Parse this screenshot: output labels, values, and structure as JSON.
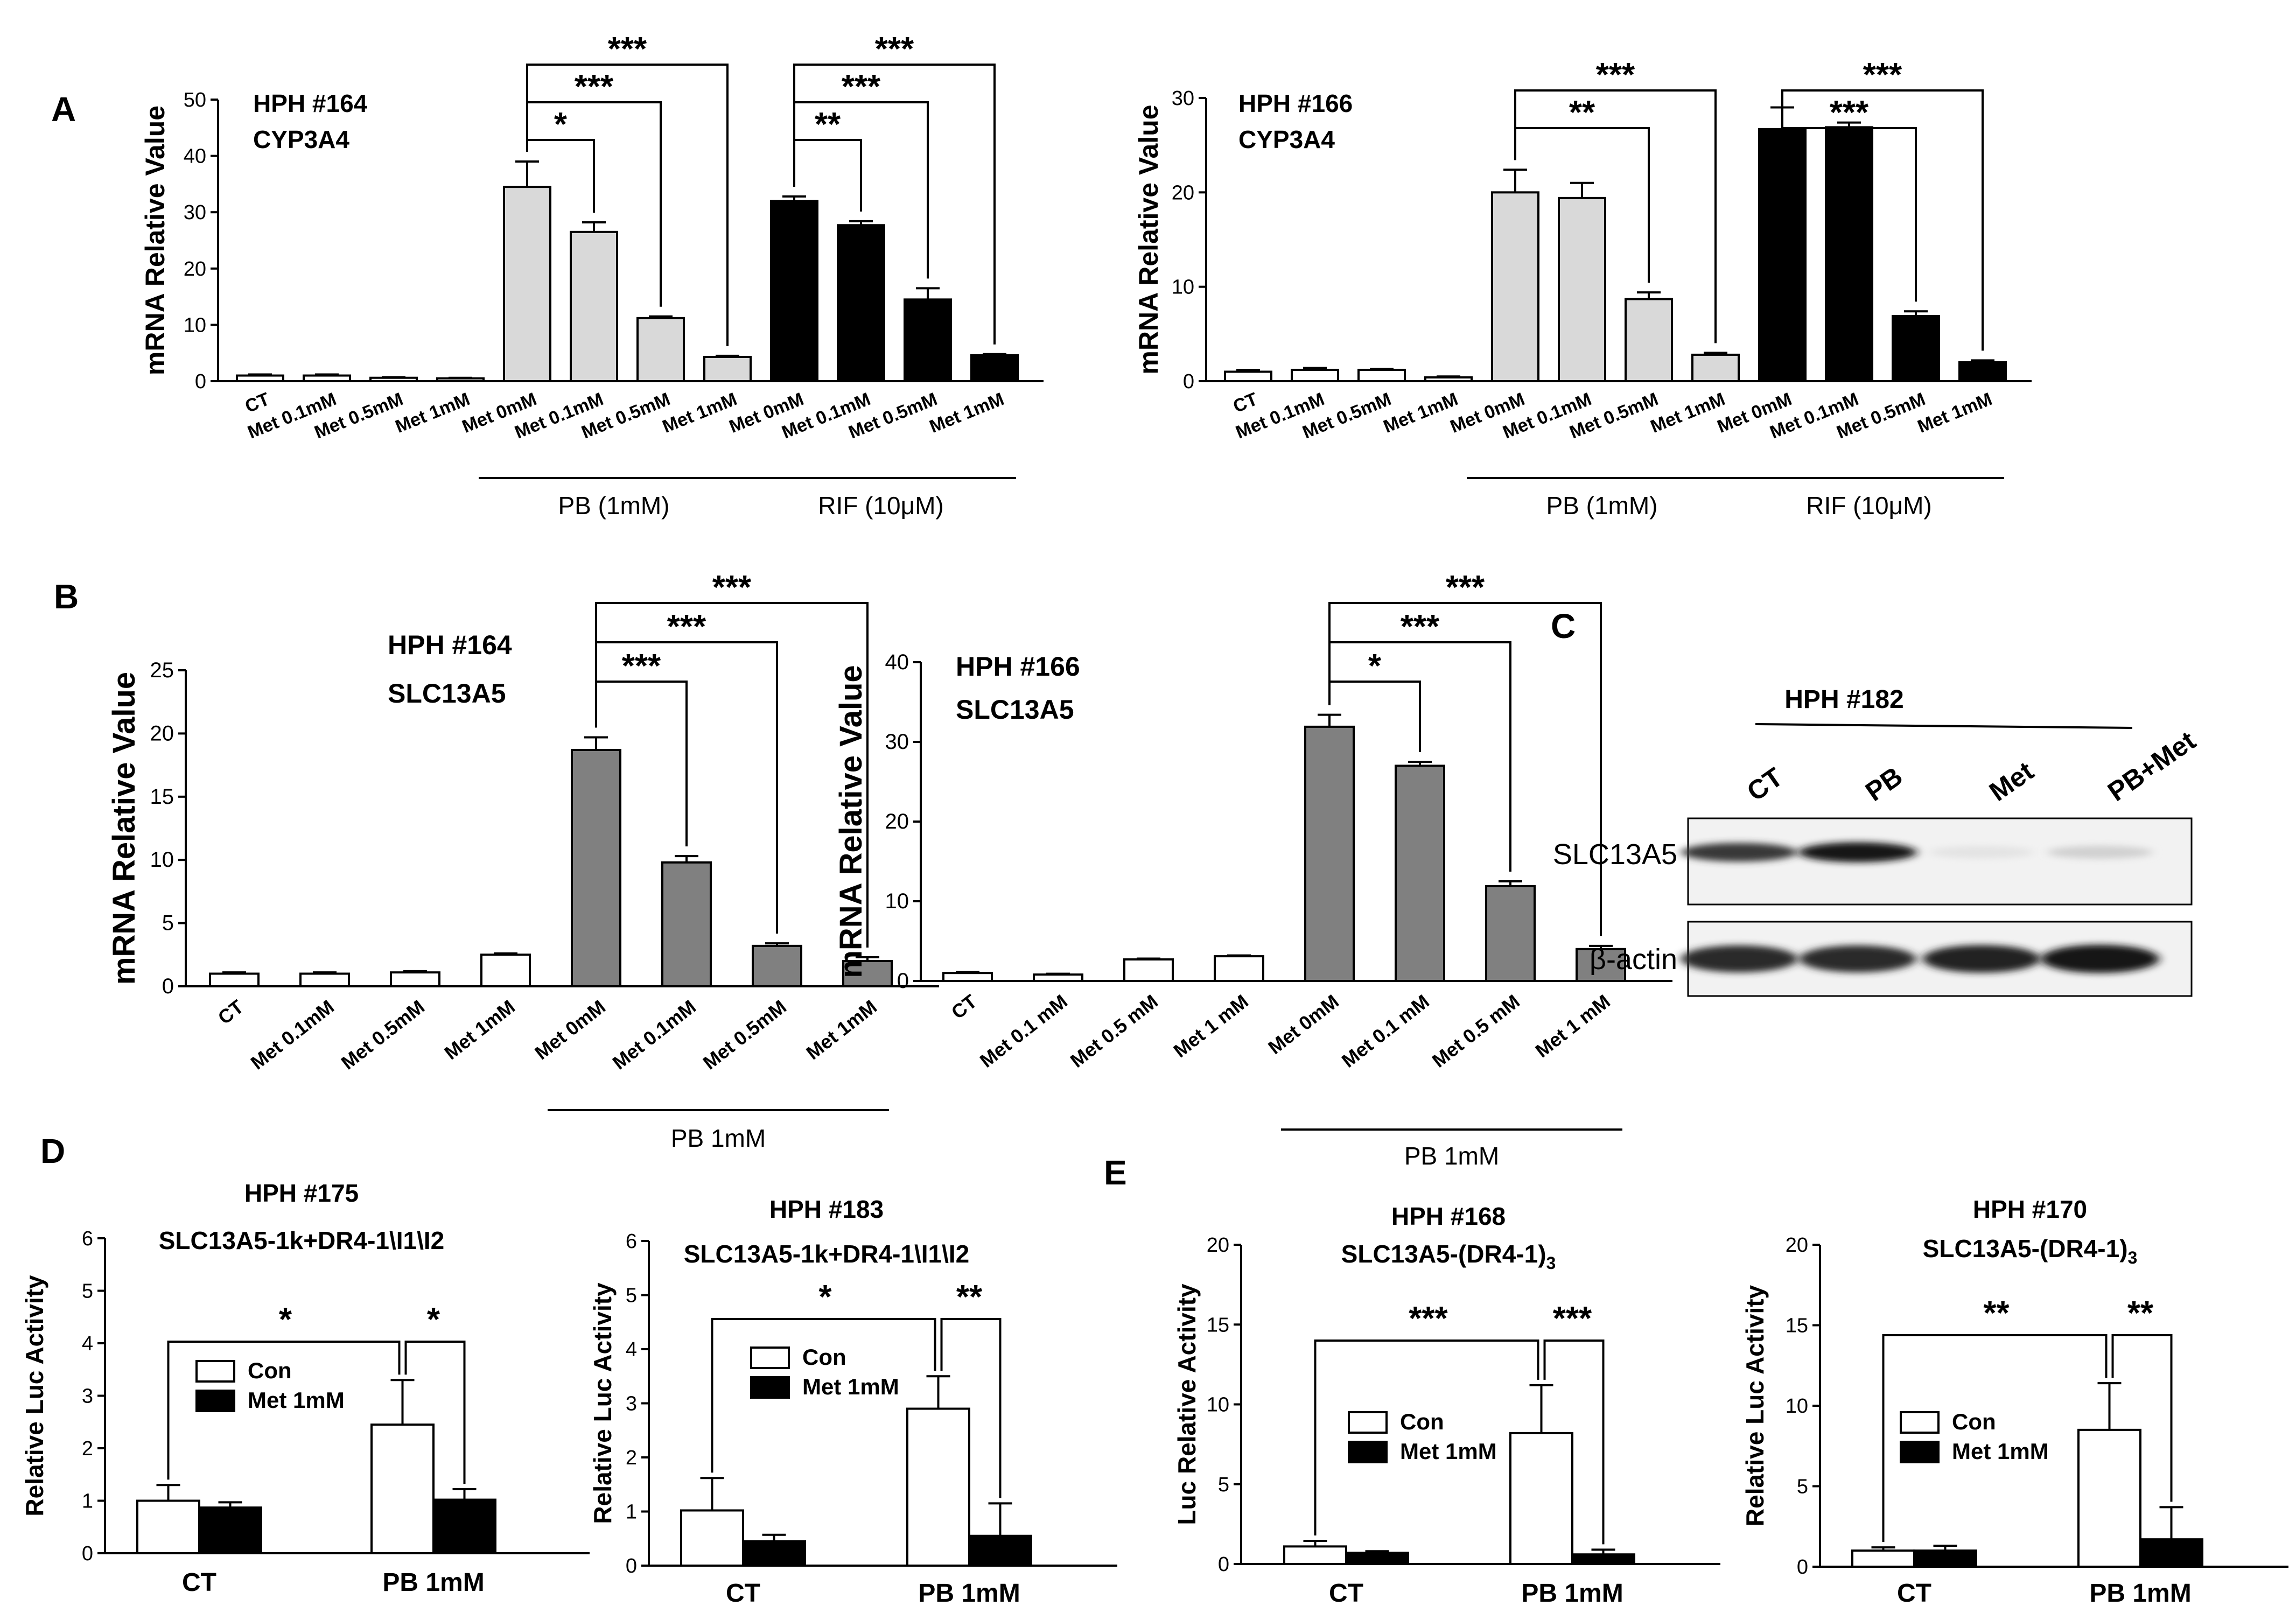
{
  "panels": {
    "A": "A",
    "B": "B",
    "C": "C",
    "D": "D",
    "E": "E"
  },
  "colors": {
    "white": "#ffffff",
    "light": "#d9d9d9",
    "gray": "#808080",
    "black": "#000000"
  },
  "chart_data": [
    {
      "id": "A1",
      "type": "bar",
      "title_lines": [
        "HPH #164",
        "CYP3A4"
      ],
      "ylabel": "mRNA Relative Value",
      "ylim": [
        0,
        50
      ],
      "yticks": [
        0,
        10,
        20,
        30,
        40,
        50
      ],
      "categories": [
        "CT",
        "Met 0.1mM",
        "Met 0.5mM",
        "Met 1mM",
        "Met 0mM",
        "Met 0.1mM",
        "Met 0.5mM",
        "Met 1mM",
        "Met 0mM",
        "Met 0.1mM",
        "Met 0.5mM",
        "Met 1mM"
      ],
      "values": [
        1.0,
        1.0,
        0.6,
        0.5,
        34.5,
        26.5,
        11.2,
        4.3,
        32.0,
        27.7,
        14.5,
        4.6
      ],
      "errors": [
        0.2,
        0.2,
        0.1,
        0.1,
        4.5,
        1.7,
        0.3,
        0.2,
        0.8,
        0.7,
        2.0,
        0.2
      ],
      "colors": [
        "white",
        "white",
        "white",
        "white",
        "light",
        "light",
        "light",
        "light",
        "black",
        "black",
        "black",
        "black"
      ],
      "groups": [
        {
          "label": "PB (1mM)",
          "from": 4,
          "to": 7
        },
        {
          "label": "RIF (10μM)",
          "from": 8,
          "to": 11
        }
      ],
      "sig": [
        {
          "from": 4,
          "to": 5,
          "label": "*"
        },
        {
          "from": 4,
          "to": 6,
          "label": "***"
        },
        {
          "from": 4,
          "to": 7,
          "label": "***"
        },
        {
          "from": 8,
          "to": 9,
          "label": "**"
        },
        {
          "from": 8,
          "to": 10,
          "label": "***"
        },
        {
          "from": 8,
          "to": 11,
          "label": "***"
        }
      ]
    },
    {
      "id": "A2",
      "type": "bar",
      "title_lines": [
        "HPH #166",
        "CYP3A4"
      ],
      "ylabel": "mRNA Relative Value",
      "ylim": [
        0,
        30
      ],
      "yticks": [
        0,
        10,
        20,
        30
      ],
      "categories": [
        "CT",
        "Met 0.1mM",
        "Met 0.5mM",
        "Met 1mM",
        "Met 0mM",
        "Met 0.1mM",
        "Met 0.5mM",
        "Met 1mM",
        "Met 0mM",
        "Met 0.1mM",
        "Met 0.5mM",
        "Met 1mM"
      ],
      "values": [
        1.0,
        1.2,
        1.2,
        0.4,
        20.0,
        19.4,
        8.7,
        2.8,
        26.7,
        26.9,
        6.9,
        2.0
      ],
      "errors": [
        0.2,
        0.2,
        0.1,
        0.1,
        2.4,
        1.6,
        0.7,
        0.2,
        2.3,
        0.5,
        0.5,
        0.2
      ],
      "colors": [
        "white",
        "white",
        "white",
        "white",
        "light",
        "light",
        "light",
        "light",
        "black",
        "black",
        "black",
        "black"
      ],
      "groups": [
        {
          "label": "PB (1mM)",
          "from": 4,
          "to": 7
        },
        {
          "label": "RIF (10μM)",
          "from": 8,
          "to": 11
        }
      ],
      "sig": [
        {
          "from": 4,
          "to": 6,
          "label": "**"
        },
        {
          "from": 4,
          "to": 7,
          "label": "***"
        },
        {
          "from": 8,
          "to": 10,
          "label": "***"
        },
        {
          "from": 8,
          "to": 11,
          "label": "***"
        }
      ]
    },
    {
      "id": "B1",
      "type": "bar",
      "title_lines": [
        "HPH #164",
        "SLC13A5"
      ],
      "ylabel": "mRNA Relative Value",
      "ylim": [
        0,
        25
      ],
      "yticks": [
        0,
        5,
        10,
        15,
        20,
        25
      ],
      "categories": [
        "CT",
        "Met 0.1mM",
        "Met 0.5mM",
        "Met 1mM",
        "Met 0mM",
        "Met 0.1mM",
        "Met 0.5mM",
        "Met 1mM"
      ],
      "values": [
        1.0,
        1.0,
        1.1,
        2.5,
        18.7,
        9.8,
        3.2,
        2.0
      ],
      "errors": [
        0.1,
        0.1,
        0.1,
        0.1,
        1.0,
        0.5,
        0.2,
        0.3
      ],
      "colors": [
        "white",
        "white",
        "white",
        "white",
        "gray",
        "gray",
        "gray",
        "gray"
      ],
      "groups": [
        {
          "label": "PB 1mM",
          "from": 4,
          "to": 7
        }
      ],
      "sig": [
        {
          "from": 4,
          "to": 5,
          "label": "***"
        },
        {
          "from": 4,
          "to": 6,
          "label": "***"
        },
        {
          "from": 4,
          "to": 7,
          "label": "***"
        }
      ]
    },
    {
      "id": "B2",
      "type": "bar",
      "title_lines": [
        "HPH #166",
        "SLC13A5"
      ],
      "ylabel": "mRNA Relative Value",
      "ylim": [
        0,
        40
      ],
      "yticks": [
        0,
        10,
        20,
        30,
        40
      ],
      "categories": [
        "CT",
        "Met 0.1 mM",
        "Met 0.5 mM",
        "Met 1 mM",
        "Met 0mM",
        "Met 0.1 mM",
        "Met 0.5 mM",
        "Met 1 mM"
      ],
      "values": [
        1.0,
        0.8,
        2.7,
        3.1,
        31.9,
        27.0,
        11.9,
        4.0
      ],
      "errors": [
        0.1,
        0.1,
        0.1,
        0.1,
        1.5,
        0.5,
        0.6,
        0.4
      ],
      "colors": [
        "white",
        "white",
        "white",
        "white",
        "gray",
        "gray",
        "gray",
        "gray"
      ],
      "groups": [
        {
          "label": "PB 1mM",
          "from": 4,
          "to": 7
        }
      ],
      "sig": [
        {
          "from": 4,
          "to": 5,
          "label": "*"
        },
        {
          "from": 4,
          "to": 6,
          "label": "***"
        },
        {
          "from": 4,
          "to": 7,
          "label": "***"
        }
      ]
    },
    {
      "id": "D1",
      "type": "bar",
      "title_lines": [
        "HPH #175",
        "SLC13A5-1k+DR4-1\\I1\\I2"
      ],
      "ylabel": "Relative Luc Activity",
      "ylim": [
        0,
        6
      ],
      "yticks": [
        0,
        1,
        2,
        3,
        4,
        5,
        6
      ],
      "categories": [
        "CT",
        "PB 1mM"
      ],
      "series": [
        {
          "name": "Con",
          "values": [
            1.0,
            2.45
          ],
          "errors": [
            0.3,
            0.85
          ]
        },
        {
          "name": "Met 1mM",
          "values": [
            0.87,
            1.02
          ],
          "errors": [
            0.1,
            0.2
          ]
        }
      ],
      "sig": [
        {
          "label": "*"
        },
        {
          "label": "*"
        }
      ]
    },
    {
      "id": "D2",
      "type": "bar",
      "title_lines": [
        "HPH #183",
        "SLC13A5-1k+DR4-1\\I1\\I2"
      ],
      "ylabel": "Relative Luc Activity",
      "ylim": [
        0,
        6
      ],
      "yticks": [
        0,
        1,
        2,
        3,
        4,
        5,
        6
      ],
      "categories": [
        "CT",
        "PB 1mM"
      ],
      "series": [
        {
          "name": "Con",
          "values": [
            1.02,
            2.9
          ],
          "errors": [
            0.6,
            0.6
          ]
        },
        {
          "name": "Met 1mM",
          "values": [
            0.45,
            0.55
          ],
          "errors": [
            0.12,
            0.6
          ]
        }
      ],
      "sig": [
        {
          "label": "*"
        },
        {
          "label": "**"
        }
      ]
    },
    {
      "id": "E1",
      "type": "bar",
      "title_lines": [
        "HPH #168",
        "SLC13A5-(DR4-1)3"
      ],
      "ylabel": "Luc Relative Activity",
      "ylim": [
        0,
        20
      ],
      "yticks": [
        0,
        5,
        10,
        15,
        20
      ],
      "categories": [
        "CT",
        "PB 1mM"
      ],
      "series": [
        {
          "name": "Con",
          "values": [
            1.1,
            8.2
          ],
          "errors": [
            0.35,
            3.0
          ]
        },
        {
          "name": "Met 1mM",
          "values": [
            0.7,
            0.6
          ],
          "errors": [
            0.1,
            0.3
          ]
        }
      ],
      "sig": [
        {
          "label": "***"
        },
        {
          "label": "***"
        }
      ]
    },
    {
      "id": "E2",
      "type": "bar",
      "title_lines": [
        "HPH #170",
        "SLC13A5-(DR4-1)3"
      ],
      "ylabel": "Relative Luc Activity",
      "ylim": [
        0,
        20
      ],
      "yticks": [
        0,
        5,
        10,
        15,
        20
      ],
      "categories": [
        "CT",
        "PB 1mM"
      ],
      "series": [
        {
          "name": "Con",
          "values": [
            1.0,
            8.5
          ],
          "errors": [
            0.2,
            2.9
          ]
        },
        {
          "name": "Met 1mM",
          "values": [
            1.0,
            1.7
          ],
          "errors": [
            0.3,
            2.0
          ]
        }
      ],
      "sig": [
        {
          "label": "**"
        },
        {
          "label": "**"
        }
      ]
    }
  ],
  "blot": {
    "title": "HPH #182",
    "lanes": [
      "CT",
      "PB",
      "Met",
      "PB+Met"
    ],
    "rows": [
      {
        "label": "SLC13A5",
        "intensities": [
          0.85,
          1.0,
          0.12,
          0.2
        ]
      },
      {
        "label": "β-actin",
        "intensities": [
          0.9,
          0.9,
          0.95,
          1.0
        ]
      }
    ]
  }
}
